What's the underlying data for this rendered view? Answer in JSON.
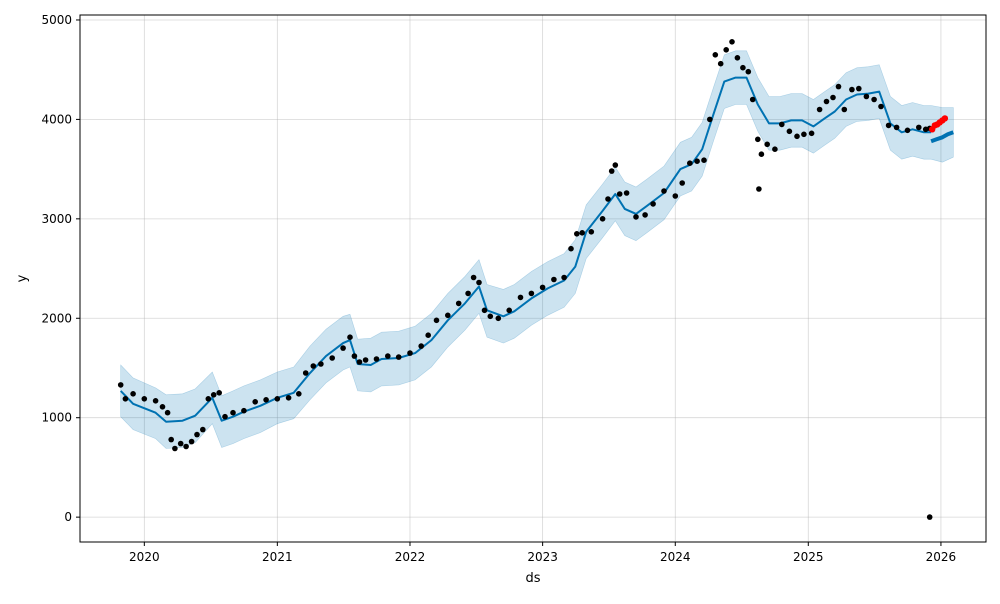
{
  "chart_data": {
    "type": "line",
    "title": "",
    "xlabel": "ds",
    "ylabel": "y",
    "xlim": [
      "2019-07-08",
      "2026-05-05"
    ],
    "ylim": [
      -250,
      5050
    ],
    "x_ticks": [
      "2020",
      "2021",
      "2022",
      "2023",
      "2024",
      "2025",
      "2026"
    ],
    "y_ticks": [
      0,
      1000,
      2000,
      3000,
      4000,
      5000
    ],
    "grid": true,
    "colors": {
      "observed": "#000000",
      "forecast": "#0072B2",
      "interval": "#0072B2",
      "recent": "#ff0000"
    },
    "series": [
      {
        "role": "forecast",
        "x": [
          "2019-10-28",
          "2019-12-01",
          "2020-02-01",
          "2020-03-01",
          "2020-04-15",
          "2020-05-20",
          "2020-07-06",
          "2020-08-01",
          "2020-09-01",
          "2020-10-01",
          "2020-11-15",
          "2021-01-01",
          "2021-02-15",
          "2021-04-01",
          "2021-05-15",
          "2021-07-01",
          "2021-07-20",
          "2021-08-10",
          "2021-09-15",
          "2021-10-15",
          "2021-12-01",
          "2022-01-15",
          "2022-03-01",
          "2022-04-15",
          "2022-06-01",
          "2022-07-10",
          "2022-08-01",
          "2022-09-15",
          "2022-10-15",
          "2022-12-01",
          "2023-01-15",
          "2023-03-01",
          "2023-04-01",
          "2023-05-01",
          "2023-06-15",
          "2023-07-20",
          "2023-08-15",
          "2023-09-15",
          "2023-10-15",
          "2023-12-01",
          "2024-01-15",
          "2024-02-15",
          "2024-03-15",
          "2024-04-15",
          "2024-05-15",
          "2024-06-15",
          "2024-07-15",
          "2024-08-15",
          "2024-09-15",
          "2024-10-15",
          "2024-11-15",
          "2024-12-15",
          "2025-01-15",
          "2025-02-15",
          "2025-03-15",
          "2025-04-15",
          "2025-05-15",
          "2025-06-15",
          "2025-07-15",
          "2025-08-15",
          "2025-09-15",
          "2025-10-15",
          "2025-11-15",
          "2025-12-05"
        ],
        "y": [
          1270,
          1140,
          1050,
          960,
          970,
          1020,
          1200,
          970,
          1010,
          1060,
          1120,
          1200,
          1250,
          1450,
          1620,
          1750,
          1780,
          1540,
          1530,
          1590,
          1600,
          1650,
          1780,
          1980,
          2150,
          2320,
          2080,
          2020,
          2070,
          2200,
          2300,
          2380,
          2520,
          2870,
          3080,
          3250,
          3100,
          3050,
          3130,
          3260,
          3500,
          3550,
          3700,
          4050,
          4380,
          4420,
          4420,
          4150,
          3960,
          3960,
          3990,
          3990,
          3930,
          4010,
          4080,
          4200,
          4250,
          4260,
          4280,
          3960,
          3870,
          3900,
          3870,
          3870
        ]
      },
      {
        "role": "forecast-future",
        "x": [
          "2025-12-05",
          "2025-12-20",
          "2026-01-05",
          "2026-01-20",
          "2026-02-04"
        ],
        "y": [
          3780,
          3800,
          3820,
          3850,
          3870
        ]
      },
      {
        "role": "interval-upper",
        "x": [
          "2019-10-28",
          "2019-12-01",
          "2020-02-01",
          "2020-03-01",
          "2020-04-15",
          "2020-05-20",
          "2020-07-06",
          "2020-08-01",
          "2020-09-01",
          "2020-10-01",
          "2020-11-15",
          "2021-01-01",
          "2021-02-15",
          "2021-04-01",
          "2021-05-15",
          "2021-07-01",
          "2021-07-20",
          "2021-08-10",
          "2021-09-15",
          "2021-10-15",
          "2021-12-01",
          "2022-01-15",
          "2022-03-01",
          "2022-04-15",
          "2022-06-01",
          "2022-07-10",
          "2022-08-01",
          "2022-09-15",
          "2022-10-15",
          "2022-12-01",
          "2023-01-15",
          "2023-03-01",
          "2023-04-01",
          "2023-05-01",
          "2023-06-15",
          "2023-07-20",
          "2023-08-15",
          "2023-09-15",
          "2023-10-15",
          "2023-12-01",
          "2024-01-15",
          "2024-02-15",
          "2024-03-15",
          "2024-04-15",
          "2024-05-15",
          "2024-06-15",
          "2024-07-15",
          "2024-08-15",
          "2024-09-15",
          "2024-10-15",
          "2024-11-15",
          "2024-12-15",
          "2025-01-15",
          "2025-02-15",
          "2025-03-15",
          "2025-04-15",
          "2025-05-15",
          "2025-06-15",
          "2025-07-15",
          "2025-08-15",
          "2025-09-15",
          "2025-10-15",
          "2025-11-15",
          "2025-12-05",
          "2026-01-05",
          "2026-02-04"
        ],
        "y": [
          1530,
          1400,
          1300,
          1230,
          1240,
          1290,
          1460,
          1220,
          1270,
          1320,
          1380,
          1460,
          1510,
          1720,
          1890,
          2020,
          2040,
          1790,
          1800,
          1860,
          1870,
          1920,
          2050,
          2250,
          2420,
          2590,
          2340,
          2290,
          2340,
          2470,
          2570,
          2650,
          2790,
          3140,
          3350,
          3520,
          3370,
          3320,
          3400,
          3530,
          3770,
          3820,
          3970,
          4320,
          4650,
          4690,
          4690,
          4420,
          4230,
          4230,
          4260,
          4260,
          4200,
          4280,
          4350,
          4470,
          4520,
          4530,
          4550,
          4230,
          4140,
          4170,
          4140,
          4140,
          4120,
          4120
        ]
      },
      {
        "role": "interval-lower",
        "x": [
          "2019-10-28",
          "2019-12-01",
          "2020-02-01",
          "2020-03-01",
          "2020-04-15",
          "2020-05-20",
          "2020-07-06",
          "2020-08-01",
          "2020-09-01",
          "2020-10-01",
          "2020-11-15",
          "2021-01-01",
          "2021-02-15",
          "2021-04-01",
          "2021-05-15",
          "2021-07-01",
          "2021-07-20",
          "2021-08-10",
          "2021-09-15",
          "2021-10-15",
          "2021-12-01",
          "2022-01-15",
          "2022-03-01",
          "2022-04-15",
          "2022-06-01",
          "2022-07-10",
          "2022-08-01",
          "2022-09-15",
          "2022-10-15",
          "2022-12-01",
          "2023-01-15",
          "2023-03-01",
          "2023-04-01",
          "2023-05-01",
          "2023-06-15",
          "2023-07-20",
          "2023-08-15",
          "2023-09-15",
          "2023-10-15",
          "2023-12-01",
          "2024-01-15",
          "2024-02-15",
          "2024-03-15",
          "2024-04-15",
          "2024-05-15",
          "2024-06-15",
          "2024-07-15",
          "2024-08-15",
          "2024-09-15",
          "2024-10-15",
          "2024-11-15",
          "2024-12-15",
          "2025-01-15",
          "2025-02-15",
          "2025-03-15",
          "2025-04-15",
          "2025-05-15",
          "2025-06-15",
          "2025-07-15",
          "2025-08-15",
          "2025-09-15",
          "2025-10-15",
          "2025-11-15",
          "2025-12-05",
          "2026-01-05",
          "2026-02-04"
        ],
        "y": [
          1010,
          880,
          790,
          690,
          700,
          750,
          940,
          700,
          740,
          790,
          850,
          940,
          990,
          1180,
          1350,
          1480,
          1510,
          1270,
          1260,
          1320,
          1330,
          1380,
          1510,
          1710,
          1880,
          2050,
          1810,
          1750,
          1800,
          1930,
          2030,
          2110,
          2250,
          2600,
          2810,
          2980,
          2830,
          2780,
          2860,
          2990,
          3230,
          3280,
          3430,
          3780,
          4110,
          4150,
          4150,
          3880,
          3690,
          3690,
          3720,
          3720,
          3660,
          3740,
          3810,
          3930,
          3980,
          3990,
          4010,
          3690,
          3600,
          3630,
          3600,
          3600,
          3570,
          3620
        ]
      },
      {
        "role": "observed",
        "x": [
          "2019-10-28",
          "2019-11-10",
          "2019-12-01",
          "2020-01-01",
          "2020-02-01",
          "2020-02-20",
          "2020-03-05",
          "2020-03-15",
          "2020-03-25",
          "2020-04-10",
          "2020-04-25",
          "2020-05-10",
          "2020-05-25",
          "2020-06-10",
          "2020-06-25",
          "2020-07-10",
          "2020-07-25",
          "2020-08-10",
          "2020-09-01",
          "2020-10-01",
          "2020-11-01",
          "2020-12-01",
          "2021-01-01",
          "2021-02-01",
          "2021-03-01",
          "2021-03-20",
          "2021-04-10",
          "2021-05-01",
          "2021-06-01",
          "2021-07-01",
          "2021-07-20",
          "2021-08-01",
          "2021-08-15",
          "2021-09-01",
          "2021-10-01",
          "2021-11-01",
          "2021-12-01",
          "2022-01-01",
          "2022-02-01",
          "2022-02-20",
          "2022-03-15",
          "2022-04-15",
          "2022-05-15",
          "2022-06-10",
          "2022-06-25",
          "2022-07-10",
          "2022-07-25",
          "2022-08-10",
          "2022-09-01",
          "2022-10-01",
          "2022-11-01",
          "2022-12-01",
          "2023-01-01",
          "2023-02-01",
          "2023-03-01",
          "2023-03-20",
          "2023-04-05",
          "2023-04-20",
          "2023-05-15",
          "2023-06-15",
          "2023-06-30",
          "2023-07-10",
          "2023-07-20",
          "2023-08-01",
          "2023-08-20",
          "2023-09-15",
          "2023-10-10",
          "2023-11-01",
          "2023-12-01",
          "2024-01-01",
          "2024-01-20",
          "2024-02-10",
          "2024-03-01",
          "2024-03-20",
          "2024-04-05",
          "2024-04-20",
          "2024-05-05",
          "2024-05-20",
          "2024-06-05",
          "2024-06-20",
          "2024-07-05",
          "2024-07-20",
          "2024-08-01",
          "2024-08-15",
          "2024-08-25",
          "2024-09-10",
          "2024-10-01",
          "2024-10-20",
          "2024-11-10",
          "2024-12-01",
          "2024-12-20",
          "2025-01-10",
          "2025-02-01",
          "2025-02-20",
          "2025-03-10",
          "2025-03-25",
          "2025-04-10",
          "2025-05-01",
          "2025-05-20",
          "2025-06-10",
          "2025-07-01",
          "2025-07-20",
          "2025-08-10",
          "2025-09-01",
          "2025-10-01",
          "2025-11-01",
          "2025-11-20",
          "2025-12-01"
        ],
        "y": [
          1330,
          1190,
          1240,
          1190,
          1170,
          1110,
          1050,
          780,
          690,
          740,
          710,
          760,
          830,
          880,
          1190,
          1230,
          1250,
          1010,
          1050,
          1070,
          1160,
          1180,
          1190,
          1200,
          1240,
          1450,
          1520,
          1540,
          1600,
          1700,
          1810,
          1620,
          1560,
          1580,
          1590,
          1620,
          1610,
          1650,
          1720,
          1830,
          1980,
          2030,
          2150,
          2250,
          2410,
          2360,
          2080,
          2020,
          2000,
          2080,
          2210,
          2250,
          2310,
          2390,
          2410,
          2700,
          2850,
          2860,
          2870,
          3000,
          3200,
          3480,
          3540,
          3250,
          3260,
          3020,
          3040,
          3150,
          3280,
          3230,
          3360,
          3560,
          3580,
          3590,
          4000,
          4650,
          4560,
          4700,
          4780,
          4620,
          4520,
          4480,
          4200,
          3800,
          3650,
          3750,
          3700,
          3950,
          3880,
          3830,
          3850,
          3860,
          4100,
          4180,
          4220,
          4330,
          4100,
          4300,
          4310,
          4230,
          4200,
          4130,
          3940,
          3920,
          3890,
          3920,
          3900,
          3910
        ]
      },
      {
        "role": "recent",
        "x": [
          "2025-12-08",
          "2025-12-15",
          "2025-12-22",
          "2025-12-29",
          "2026-01-05",
          "2026-01-12"
        ],
        "y": [
          3900,
          3940,
          3950,
          3970,
          3990,
          4010
        ]
      }
    ],
    "outliers": [
      {
        "x": "2024-08-18",
        "y": 3300
      },
      {
        "x": "2025-12-01",
        "y": 0
      }
    ]
  }
}
